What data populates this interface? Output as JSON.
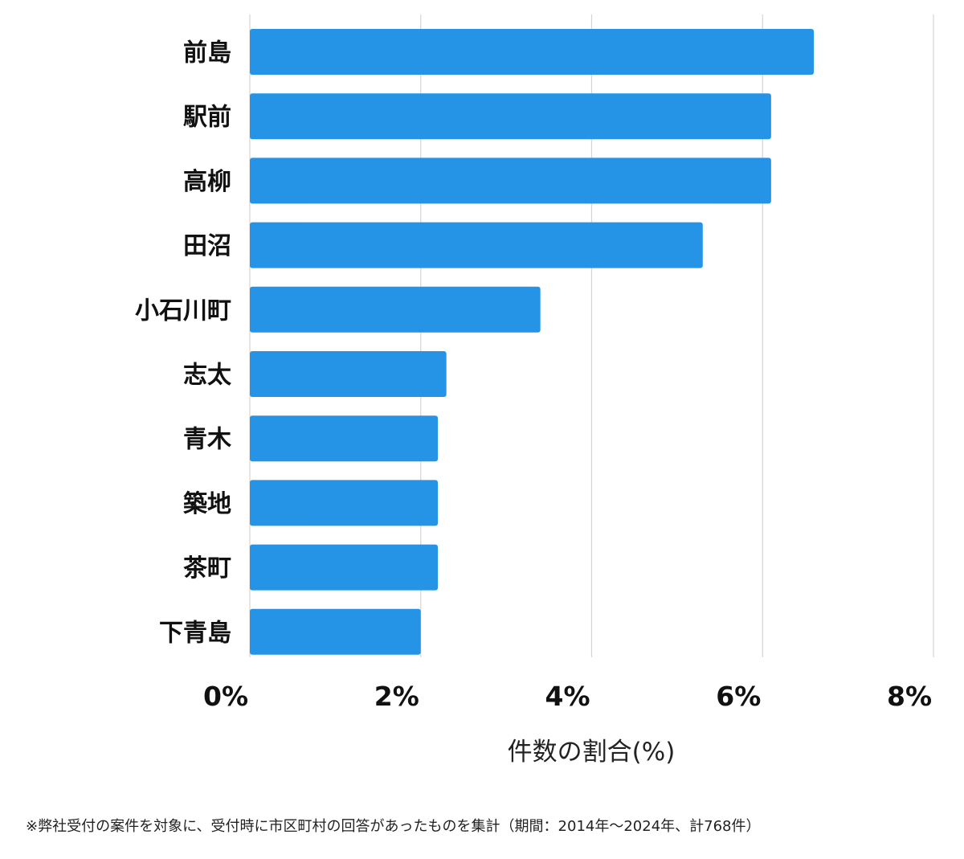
{
  "chart_data": {
    "type": "bar",
    "orientation": "horizontal",
    "categories": [
      "前島",
      "駅前",
      "高柳",
      "田沼",
      "小石川町",
      "志太",
      "青木",
      "築地",
      "茶町",
      "下青島"
    ],
    "values": [
      6.6,
      6.1,
      6.1,
      5.3,
      3.4,
      2.3,
      2.2,
      2.2,
      2.2,
      2.0
    ],
    "xlabel": "件数の割合(%)",
    "x_ticks": [
      "0%",
      "2%",
      "4%",
      "6%",
      "8%"
    ],
    "xlim": [
      0,
      8
    ],
    "grid": "vertical",
    "bar_color": "#2694e6"
  },
  "footnote": "※弊社受付の案件を対象に、受付時に市区町村の回答があったものを集計（期間：2014年〜2024年、計768件）"
}
